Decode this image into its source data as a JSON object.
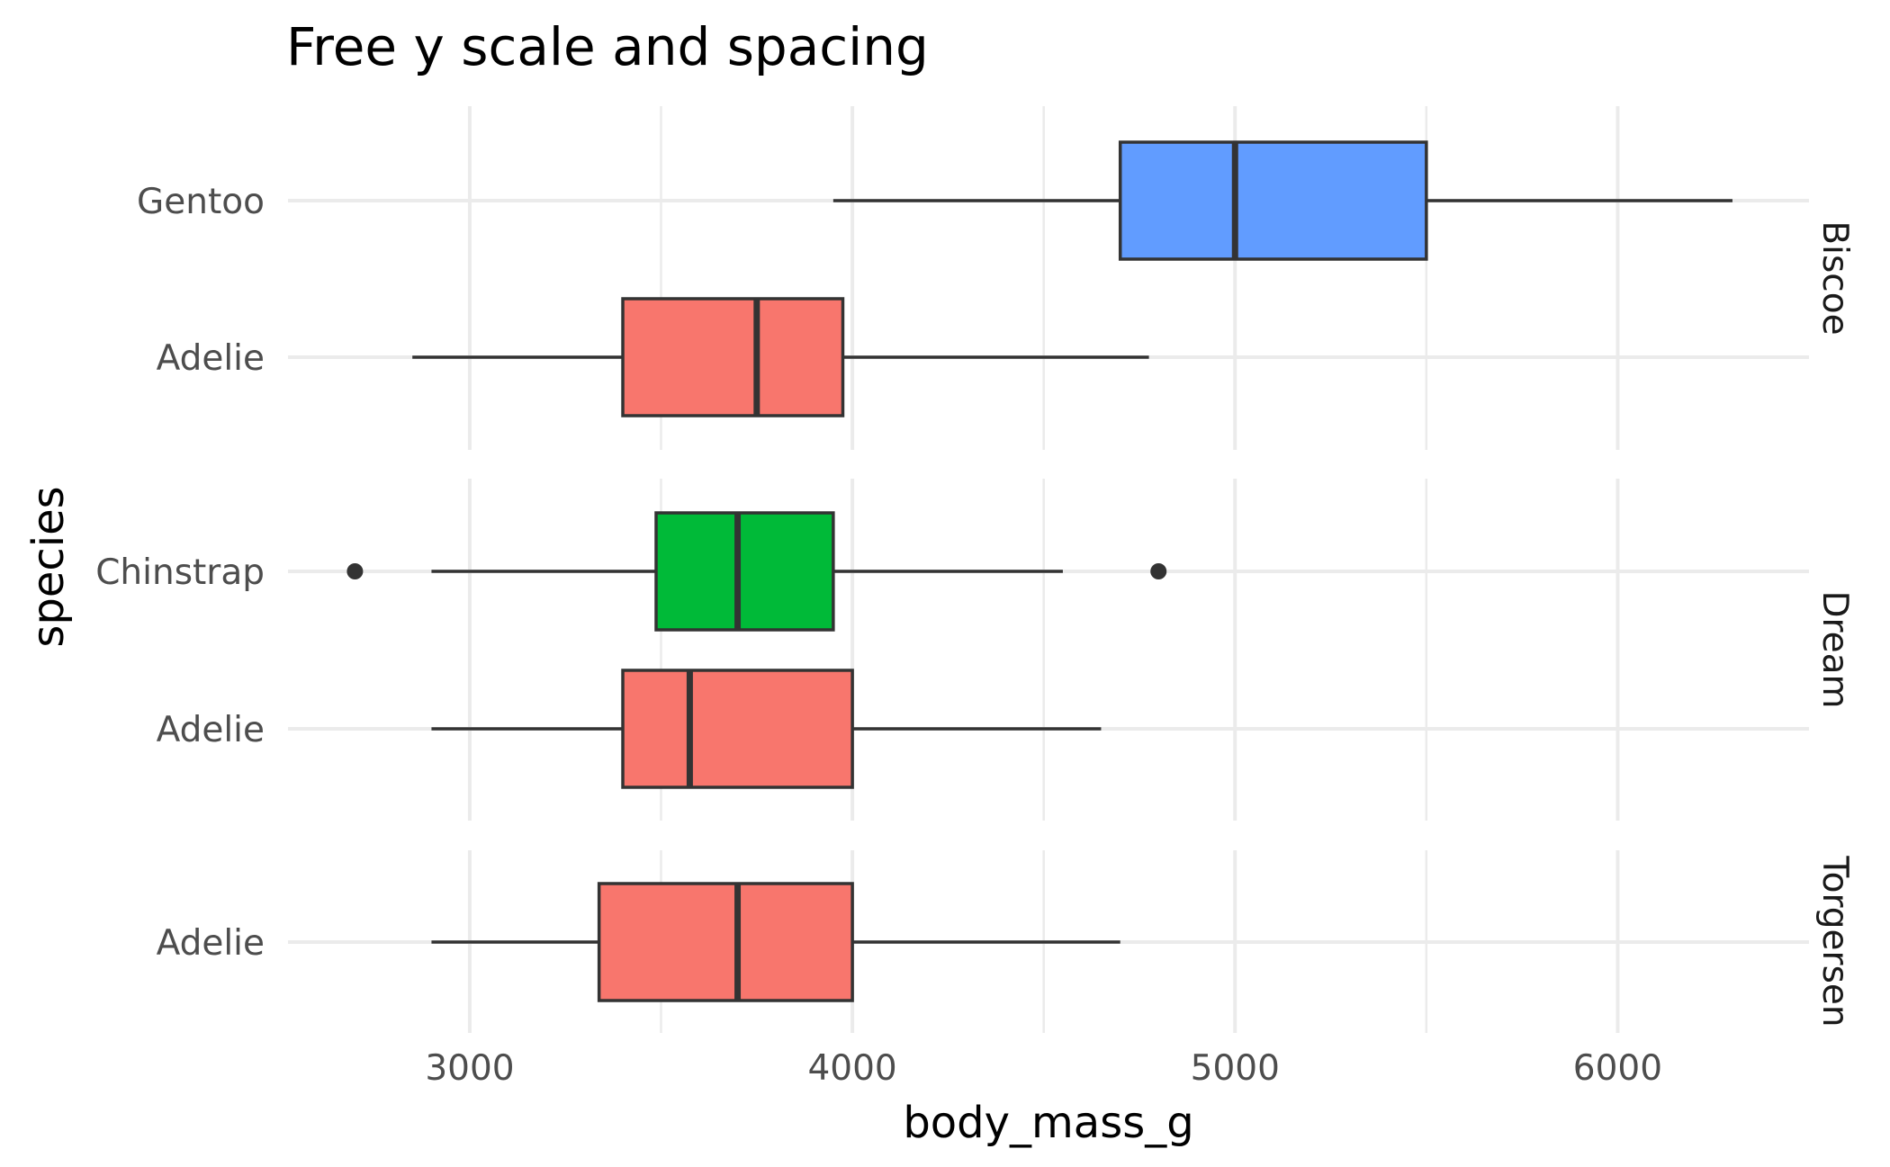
{
  "chart_data": {
    "type": "boxplot",
    "title": "Free y scale and spacing",
    "xlabel": "body_mass_g",
    "ylabel": "species",
    "xlim": [
      2525,
      6500
    ],
    "x_ticks": [
      3000,
      4000,
      5000,
      6000
    ],
    "x_tick_labels": [
      "3000",
      "4000",
      "5000",
      "6000"
    ],
    "x_minor_ticks": [
      3500,
      4500,
      5500
    ],
    "grid": true,
    "legend": "none",
    "facets": [
      {
        "label": "Biscoe",
        "boxes": [
          {
            "category": "Gentoo",
            "color": "#619CFF",
            "whisker_low": 3950,
            "q1": 4700,
            "median": 5000,
            "q3": 5500,
            "whisker_high": 6300,
            "outliers": []
          },
          {
            "category": "Adelie",
            "color": "#F8766D",
            "whisker_low": 2850,
            "q1": 3400,
            "median": 3750,
            "q3": 3975,
            "whisker_high": 4775,
            "outliers": []
          }
        ]
      },
      {
        "label": "Dream",
        "boxes": [
          {
            "category": "Chinstrap",
            "color": "#00BA38",
            "whisker_low": 2900,
            "q1": 3487,
            "median": 3700,
            "q3": 3950,
            "whisker_high": 4550,
            "outliers": [
              2700,
              4800
            ]
          },
          {
            "category": "Adelie",
            "color": "#F8766D",
            "whisker_low": 2900,
            "q1": 3400,
            "median": 3575,
            "q3": 4000,
            "whisker_high": 4650,
            "outliers": []
          }
        ]
      },
      {
        "label": "Torgersen",
        "boxes": [
          {
            "category": "Adelie",
            "color": "#F8766D",
            "whisker_low": 2900,
            "q1": 3338,
            "median": 3700,
            "q3": 4000,
            "whisker_high": 4700,
            "outliers": []
          }
        ]
      }
    ]
  }
}
